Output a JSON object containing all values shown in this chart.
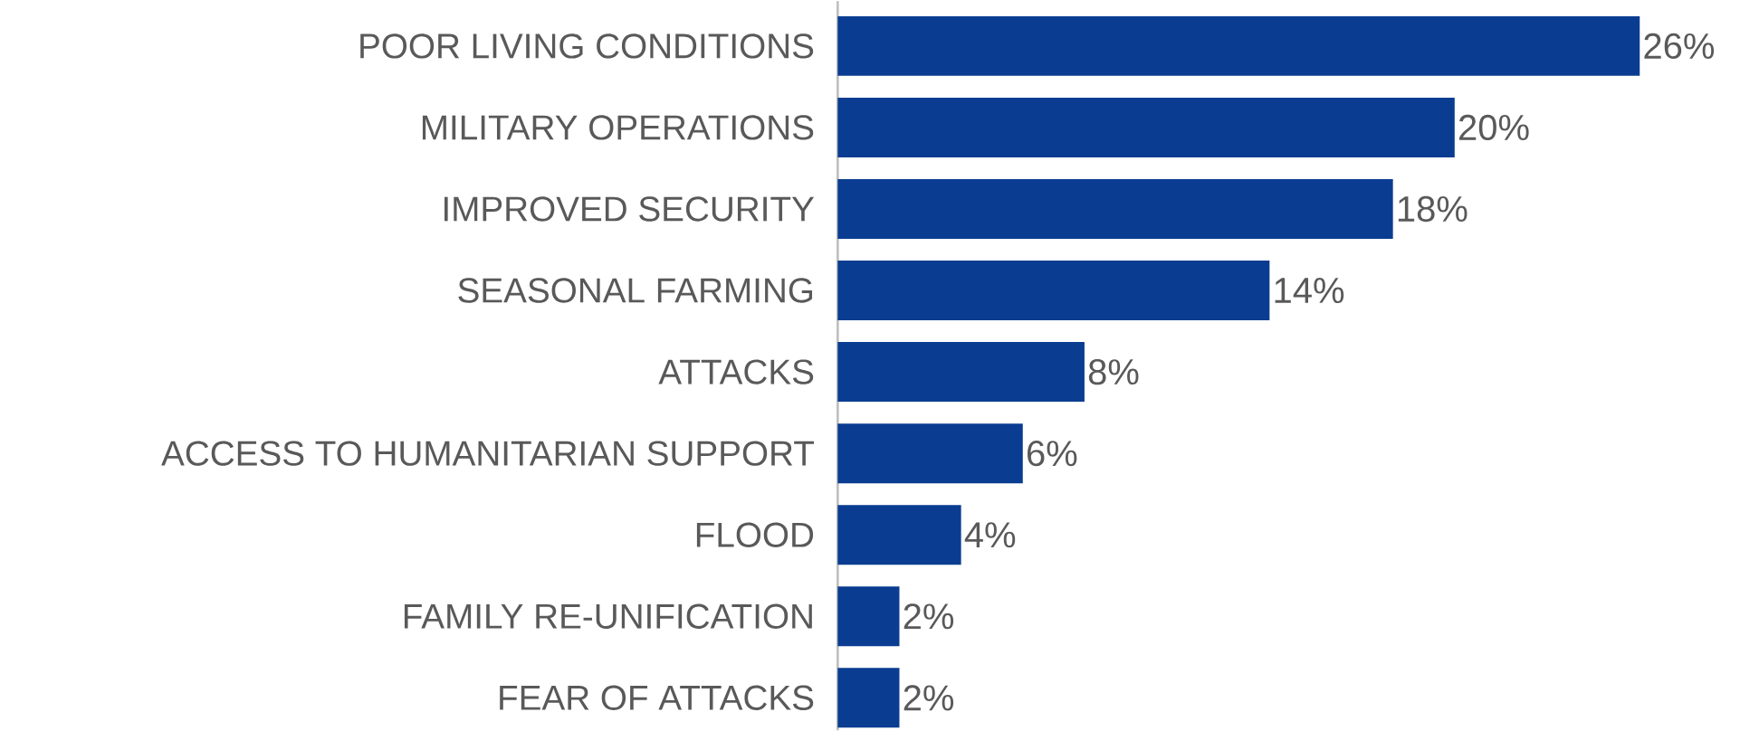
{
  "chart_data": {
    "type": "bar",
    "orientation": "horizontal",
    "categories": [
      "POOR LIVING CONDITIONS",
      "MILITARY OPERATIONS",
      "IMPROVED SECURITY",
      "SEASONAL FARMING",
      "ATTACKS",
      "ACCESS TO HUMANITARIAN SUPPORT",
      "FLOOD",
      "FAMILY RE-UNIFICATION",
      "FEAR OF ATTACKS"
    ],
    "values": [
      26,
      20,
      18,
      14,
      8,
      6,
      4,
      2,
      2
    ],
    "value_labels": [
      "26%",
      "20%",
      "18%",
      "14%",
      "8%",
      "6%",
      "4%",
      "2%",
      "2%"
    ],
    "color": "#0a3d91"
  }
}
